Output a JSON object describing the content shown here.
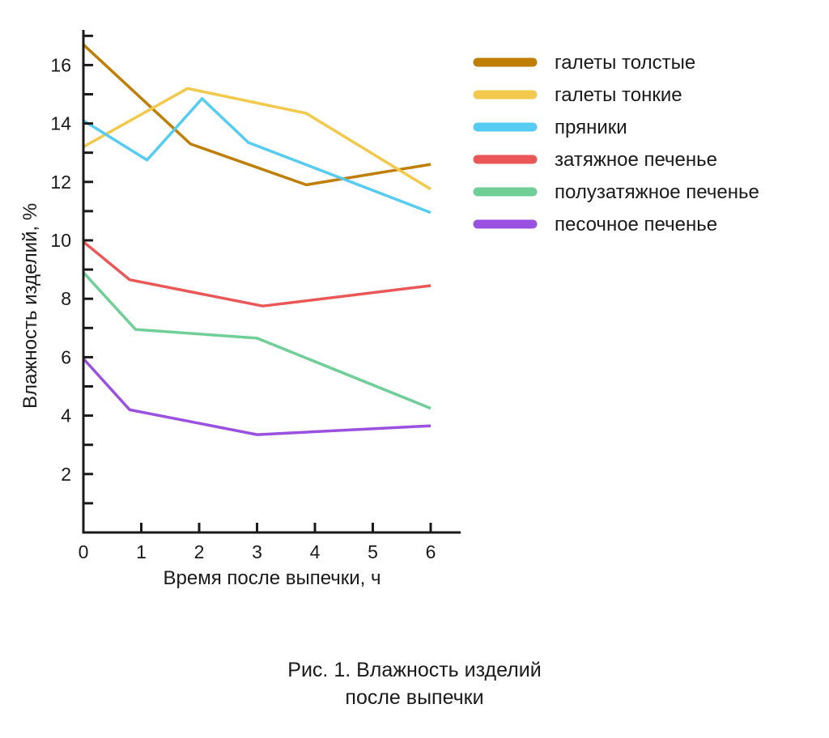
{
  "chart_data": {
    "type": "line",
    "title": "",
    "xlabel": "Время после выпечки, ч",
    "ylabel": "Влажность изделий, %",
    "xlim": [
      0,
      6.5
    ],
    "ylim": [
      0,
      17.2
    ],
    "x_ticks": [
      0,
      1,
      2,
      3,
      4,
      5,
      6
    ],
    "y_ticks": [
      2,
      4,
      6,
      8,
      10,
      12,
      14,
      16
    ],
    "y_minor_step": 1,
    "grid": false,
    "legend_position": "top-right",
    "series": [
      {
        "name": "галеты толстые",
        "color": "#BF7E04",
        "x": [
          0,
          1.85,
          3.85,
          6
        ],
        "y": [
          16.7,
          13.3,
          11.9,
          12.6
        ]
      },
      {
        "name": "галеты тонкие",
        "color": "#F2C94C",
        "x": [
          0,
          1.8,
          3.85,
          6
        ],
        "y": [
          13.2,
          15.2,
          14.35,
          11.75
        ]
      },
      {
        "name": "пряники",
        "color": "#56CCF2",
        "x": [
          0,
          1.1,
          2.05,
          2.85,
          6
        ],
        "y": [
          14.1,
          12.75,
          14.85,
          13.35,
          10.95
        ]
      },
      {
        "name": "затяжное печенье",
        "color": "#EB5757",
        "x": [
          0,
          0.8,
          3.1,
          6
        ],
        "y": [
          9.95,
          8.65,
          7.75,
          8.45
        ]
      },
      {
        "name": "полузатяжное печенье",
        "color": "#6FCF97",
        "x": [
          0,
          0.9,
          3.0,
          6
        ],
        "y": [
          8.9,
          6.95,
          6.65,
          4.25
        ]
      },
      {
        "name": "песочное печенье",
        "color": "#9B51E0",
        "x": [
          0,
          0.8,
          3.0,
          6
        ],
        "y": [
          5.95,
          4.2,
          3.35,
          3.65
        ]
      }
    ]
  },
  "caption": {
    "line1": "Рис. 1. Влажность изделий",
    "line2": "после выпечки"
  }
}
